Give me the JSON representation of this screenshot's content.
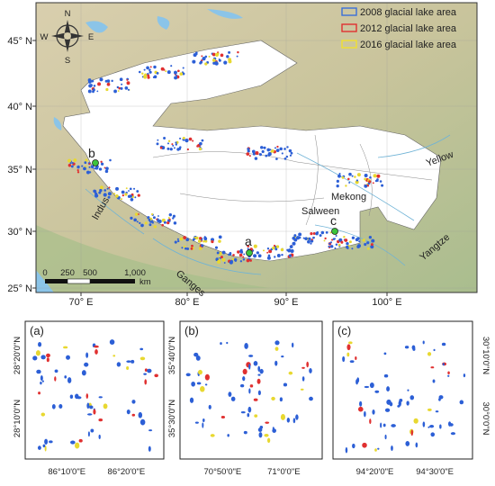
{
  "map": {
    "legend": [
      "2008 glacial lake area",
      "2012 glacial lake area",
      "2016 glacial lake area"
    ],
    "latitude_labels": [
      "45° N",
      "40° N",
      "35° N",
      "30° N",
      "25° N"
    ],
    "longitude_labels": [
      "70° E",
      "80° E",
      "90° E",
      "100° E"
    ],
    "compass": {
      "north": "N",
      "south": "S",
      "east": "E",
      "west": "W"
    },
    "rivers": [
      "Indus",
      "Ganges",
      "Mekong",
      "Salween",
      "Yellow",
      "Yangtze"
    ],
    "sites": [
      "a",
      "b",
      "c"
    ],
    "scale_bar": {
      "ticks": [
        "0",
        "250",
        "500",
        "1,000"
      ],
      "unit": "km"
    }
  },
  "panels": [
    {
      "label": "(a)",
      "lat_labels": [
        "28°20'0\"N",
        "28°10'0\"N"
      ],
      "lon_labels": [
        "86°10'0\"E",
        "86°20'0\"E"
      ]
    },
    {
      "label": "(b)",
      "lat_labels": [
        "35°40'0\"N",
        "35°30'0\"N"
      ],
      "lon_labels": [
        "70°50'0\"E",
        "71°0'0\"E"
      ]
    },
    {
      "label": "(c)",
      "lat_labels": [
        "30°10'0\"N",
        "30°0'0\"N"
      ],
      "lon_labels": [
        "94°20'0\"E",
        "94°30'0\"E"
      ]
    }
  ]
}
